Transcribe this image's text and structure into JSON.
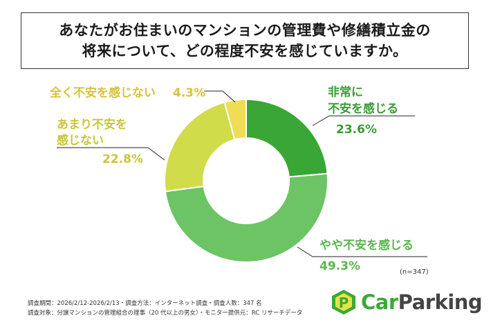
{
  "title": {
    "line1": "あなたがお住まいのマンションの管理費や修繕積立金の",
    "line2": "将来について、どの程度不安を感じていますか。"
  },
  "chart_data": {
    "type": "pie",
    "donut": true,
    "categories": [
      "非常に不安を感じる",
      "やや不安を感じる",
      "あまり不安を感じない",
      "全く不安を感じない"
    ],
    "values": [
      23.6,
      49.3,
      22.8,
      4.3
    ],
    "value_labels": [
      "23.6%",
      "49.3%",
      "22.8%",
      "4.3%"
    ],
    "colors": [
      "#3aa635",
      "#6cc465",
      "#d0dc4a",
      "#f0dc55"
    ],
    "label_colors": [
      "#3a9a35",
      "#5bb54f",
      "#c7c63a",
      "#d8c23a"
    ],
    "legend": "none"
  },
  "labels": {
    "slice0_line1": "非常に",
    "slice0_line2": "不安を感じる",
    "slice0_value": "23.6%",
    "slice1_line1": "やや不安を感じる",
    "slice1_value": "49.3%",
    "slice2_line1": "あまり不安を",
    "slice2_line2": "感じない",
    "slice2_value": "22.8%",
    "slice3_line1": "全く不安を感じない",
    "slice3_value": "4.3%"
  },
  "sample_size": "(n=347)",
  "footnotes": {
    "line1": "調査期間：2026/2/12-2026/2/13・調査方法：インターネット調査・調査人数：347 名",
    "line2": "調査対象：分譲マンションの管理組合の理事（20 代以上の男女）・モニター提供元：RC リサーチデータ"
  },
  "logo": {
    "part1": "Car",
    "part2": "Parking",
    "mark": "P"
  }
}
